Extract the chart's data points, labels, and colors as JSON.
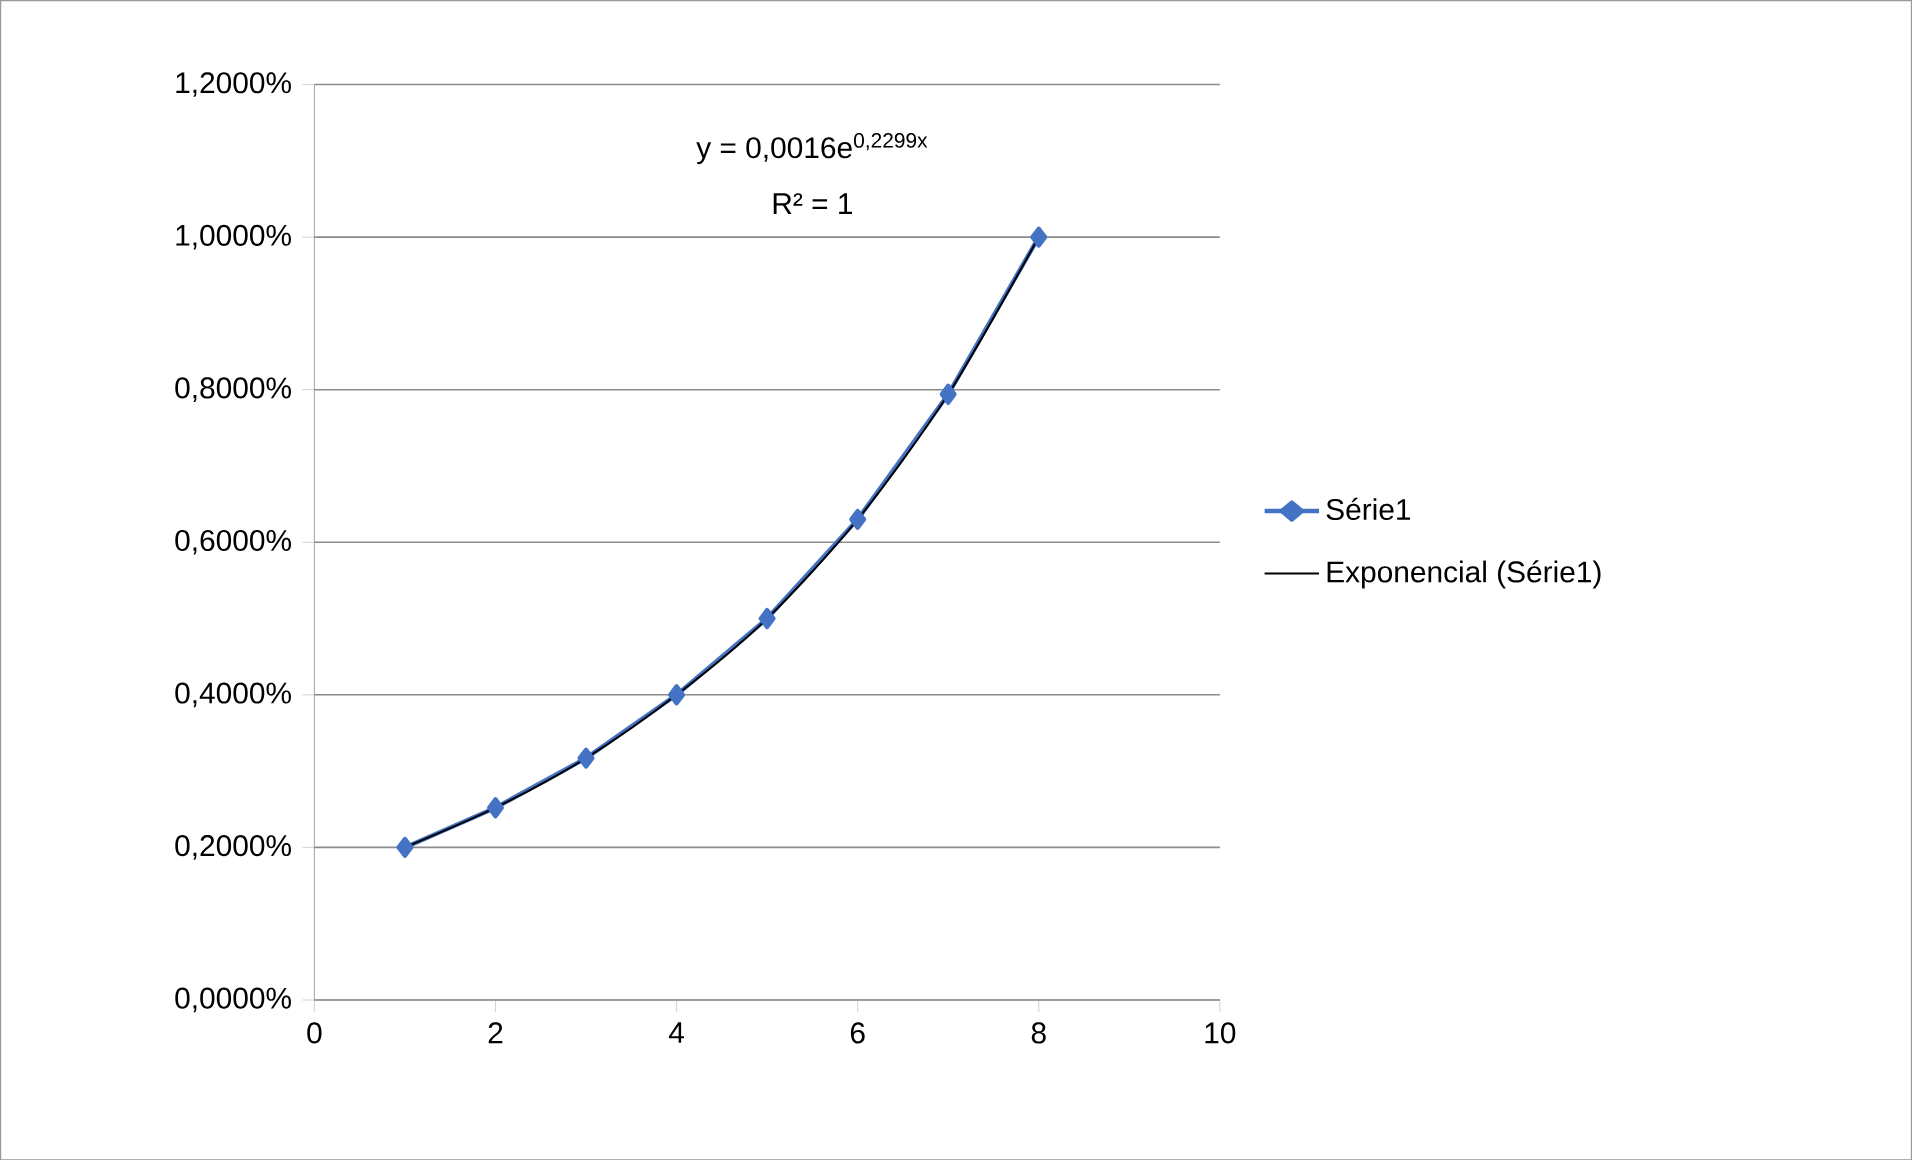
{
  "chart_data": {
    "type": "line",
    "x": [
      1,
      2,
      3,
      4,
      5,
      6,
      7,
      8
    ],
    "series": [
      {
        "name": "Série1",
        "color": "#4472c4",
        "marker": "diamond",
        "values": [
          0.2,
          0.252,
          0.317,
          0.4,
          0.5,
          0.63,
          0.794,
          1.0
        ]
      },
      {
        "name": "Exponencial (Série1)",
        "color": "#000000",
        "marker": "none",
        "x": [
          1,
          2,
          3,
          4,
          5,
          6,
          7,
          8
        ],
        "values": [
          0.2,
          0.252,
          0.317,
          0.4,
          0.5,
          0.63,
          0.794,
          1.0
        ]
      }
    ],
    "xlim": [
      0,
      10
    ],
    "xticks": [
      0,
      2,
      4,
      6,
      8,
      10
    ],
    "ylim": [
      0,
      1.2
    ],
    "yticks": [
      {
        "value": 0,
        "label": "0,0000%"
      },
      {
        "value": 0.2,
        "label": "0,2000%"
      },
      {
        "value": 0.4,
        "label": "0,4000%"
      },
      {
        "value": 0.6,
        "label": "0,6000%"
      },
      {
        "value": 0.8,
        "label": "0,8000%"
      },
      {
        "value": 1.0,
        "label": "1,0000%"
      },
      {
        "value": 1.2,
        "label": "1,2000%"
      }
    ],
    "grid": "y",
    "legend": "right",
    "annotations": [
      "y = 0,0016e$^{0,2299x}$",
      "R² = 1"
    ]
  }
}
